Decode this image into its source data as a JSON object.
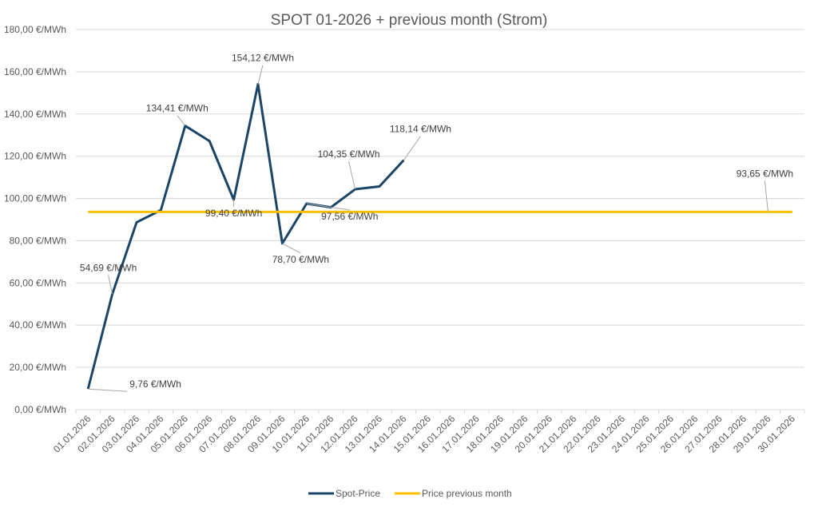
{
  "chart_data": {
    "type": "line",
    "title": "SPOT 01-2026 + previous month (Strom)",
    "xlabel": "",
    "ylabel": "",
    "y_unit_suffix": " €/MWh",
    "ylim": [
      0,
      180
    ],
    "y_ticks": [
      0,
      20,
      40,
      60,
      80,
      100,
      120,
      140,
      160,
      180
    ],
    "y_tick_labels": [
      "0,00 €/MWh",
      "20,00 €/MWh",
      "40,00 €/MWh",
      "60,00 €/MWh",
      "80,00 €/MWh",
      "100,00 €/MWh",
      "120,00 €/MWh",
      "140,00 €/MWh",
      "160,00 €/MWh",
      "180,00 €/MWh"
    ],
    "grid": true,
    "legend_position": "bottom",
    "categories": [
      "01.01.2026",
      "02.01.2026",
      "03.01.2026",
      "04.01.2026",
      "05.01.2026",
      "06.01.2026",
      "07.01.2026",
      "08.01.2026",
      "09.01.2026",
      "10.01.2026",
      "11.01.2026",
      "12.01.2026",
      "13.01.2026",
      "14.01.2026",
      "15.01.2026",
      "16.01.2026",
      "17.01.2026",
      "18.01.2026",
      "19.01.2026",
      "20.01.2026",
      "21.01.2026",
      "22.01.2026",
      "23.01.2026",
      "24.01.2026",
      "25.01.2026",
      "26.01.2026",
      "27.01.2026",
      "28.01.2026",
      "29.01.2026",
      "30.01.2026"
    ],
    "series": [
      {
        "name": "Spot-Price",
        "color": "#1b4566",
        "values": [
          9.76,
          54.69,
          88.7,
          94.5,
          134.41,
          127.2,
          99.4,
          154.12,
          78.7,
          97.56,
          95.8,
          104.35,
          105.7,
          118.14,
          null,
          null,
          null,
          null,
          null,
          null,
          null,
          null,
          null,
          null,
          null,
          null,
          null,
          null,
          null,
          null
        ]
      },
      {
        "name": "Price previous month",
        "color": "#ffc000",
        "values": [
          93.65,
          93.65,
          93.65,
          93.65,
          93.65,
          93.65,
          93.65,
          93.65,
          93.65,
          93.65,
          93.65,
          93.65,
          93.65,
          93.65,
          93.65,
          93.65,
          93.65,
          93.65,
          93.65,
          93.65,
          93.65,
          93.65,
          93.65,
          93.65,
          93.65,
          93.65,
          93.65,
          93.65,
          93.65,
          93.65
        ]
      }
    ],
    "data_labels": [
      {
        "series": 0,
        "index": 0,
        "text": "9,76 €/MWh"
      },
      {
        "series": 0,
        "index": 1,
        "text": "54,69 €/MWh"
      },
      {
        "series": 0,
        "index": 4,
        "text": "134,41 €/MWh"
      },
      {
        "series": 0,
        "index": 6,
        "text": "99,40 €/MWh"
      },
      {
        "series": 0,
        "index": 7,
        "text": "154,12 €/MWh"
      },
      {
        "series": 0,
        "index": 8,
        "text": "78,70 €/MWh"
      },
      {
        "series": 0,
        "index": 9,
        "text": "97,56 €/MWh"
      },
      {
        "series": 0,
        "index": 11,
        "text": "104,35 €/MWh"
      },
      {
        "series": 0,
        "index": 13,
        "text": "118,14 €/MWh"
      },
      {
        "series": 1,
        "index": 28,
        "text": "93,65 €/MWh"
      }
    ]
  }
}
